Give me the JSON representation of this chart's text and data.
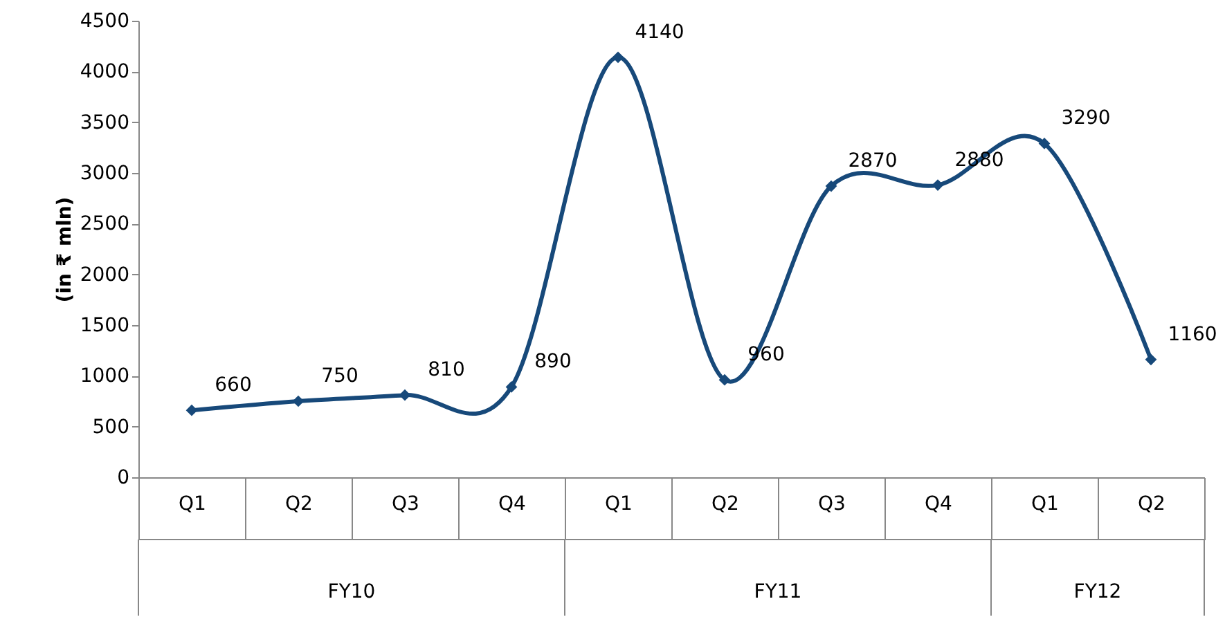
{
  "chart_data": {
    "type": "line",
    "ylabel": "(in ₹ mln)",
    "categories": [
      "Q1",
      "Q2",
      "Q3",
      "Q4",
      "Q1",
      "Q2",
      "Q3",
      "Q4",
      "Q1",
      "Q2"
    ],
    "series": [
      {
        "color": "#17497a",
        "values": [
          660,
          750,
          810,
          890,
          4140,
          960,
          2870,
          2880,
          3290,
          1160
        ]
      }
    ],
    "ylim": [
      0,
      4500
    ],
    "yticks": [
      0,
      500,
      1000,
      1500,
      2000,
      2500,
      3000,
      3500,
      4000,
      4500
    ],
    "data_labels": true,
    "marker": "diamond",
    "grid": false,
    "annotations": [
      "FY10",
      "FY11",
      "FY12"
    ]
  }
}
